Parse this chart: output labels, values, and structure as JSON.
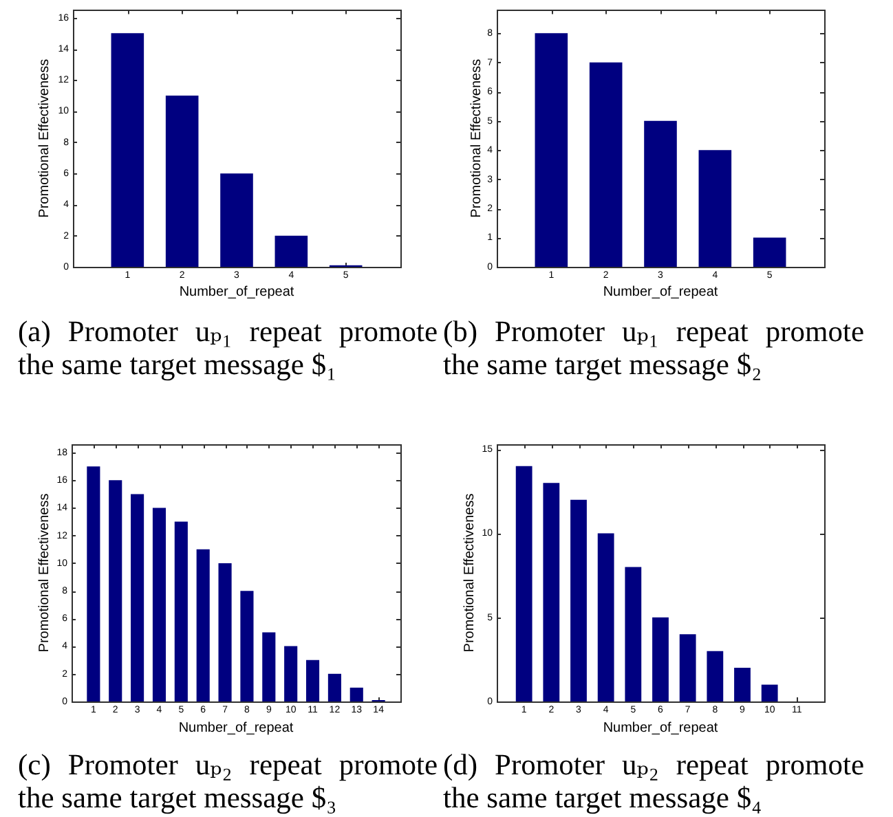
{
  "chart_data": [
    {
      "type": "bar",
      "title": "(a) Promoter uₚ₁ repeat promote the same target message $₁",
      "xlabel": "Number_of_repeat",
      "ylabel": "Promotional Effectiveness",
      "x": [
        1,
        2,
        3,
        4,
        5
      ],
      "values": [
        15,
        11,
        6,
        2,
        0.1
      ],
      "color": "#000080",
      "xlim": [
        0,
        6
      ],
      "xticks": [
        1,
        2,
        3,
        4,
        5
      ],
      "ylim": [
        0,
        16.5
      ],
      "yticks": [
        0,
        2,
        4,
        6,
        8,
        10,
        12,
        14,
        16
      ]
    },
    {
      "type": "bar",
      "title": "(b) Promoter uₚ₁ repeat promote the same target message $₂",
      "xlabel": "Number_of_repeat",
      "ylabel": "Promotional Effectiveness",
      "x": [
        1,
        2,
        3,
        4,
        5
      ],
      "values": [
        8,
        7,
        5,
        4,
        1
      ],
      "color": "#000080",
      "xlim": [
        0,
        6
      ],
      "xticks": [
        1,
        2,
        3,
        4,
        5
      ],
      "ylim": [
        0,
        8.8
      ],
      "yticks": [
        0,
        1,
        2,
        3,
        4,
        5,
        6,
        7,
        8
      ]
    },
    {
      "type": "bar",
      "title": "(c) Promoter uₚ₂ repeat promote the same target message $₃",
      "xlabel": "Number_of_repeat",
      "ylabel": "Promotional Effectiveness",
      "x": [
        1,
        2,
        3,
        4,
        5,
        6,
        7,
        8,
        9,
        10,
        11,
        12,
        13,
        14
      ],
      "values": [
        17,
        16,
        15,
        14,
        13,
        11,
        10,
        8,
        5,
        4,
        3,
        2,
        1,
        0.1
      ],
      "color": "#000080",
      "xlim": [
        0,
        15
      ],
      "xticks": [
        1,
        2,
        3,
        4,
        5,
        6,
        7,
        8,
        9,
        10,
        11,
        12,
        13,
        14
      ],
      "ylim": [
        0,
        18.6
      ],
      "yticks": [
        0,
        2,
        4,
        6,
        8,
        10,
        12,
        14,
        16,
        18
      ]
    },
    {
      "type": "bar",
      "title": "(d) Promoter uₚ₂ repeat promote the same target message $₄",
      "xlabel": "Number_of_repeat",
      "ylabel": "Promotional Effectiveness",
      "x": [
        1,
        2,
        3,
        4,
        5,
        6,
        7,
        8,
        9,
        10,
        11
      ],
      "values": [
        14,
        13,
        12,
        10,
        8,
        5,
        4,
        3,
        2,
        1,
        0
      ],
      "color": "#000080",
      "xlim": [
        0,
        12
      ],
      "xticks": [
        1,
        2,
        3,
        4,
        5,
        6,
        7,
        8,
        9,
        10,
        11
      ],
      "ylim": [
        0,
        15.3
      ],
      "yticks": [
        0,
        5,
        10,
        15
      ]
    }
  ]
}
